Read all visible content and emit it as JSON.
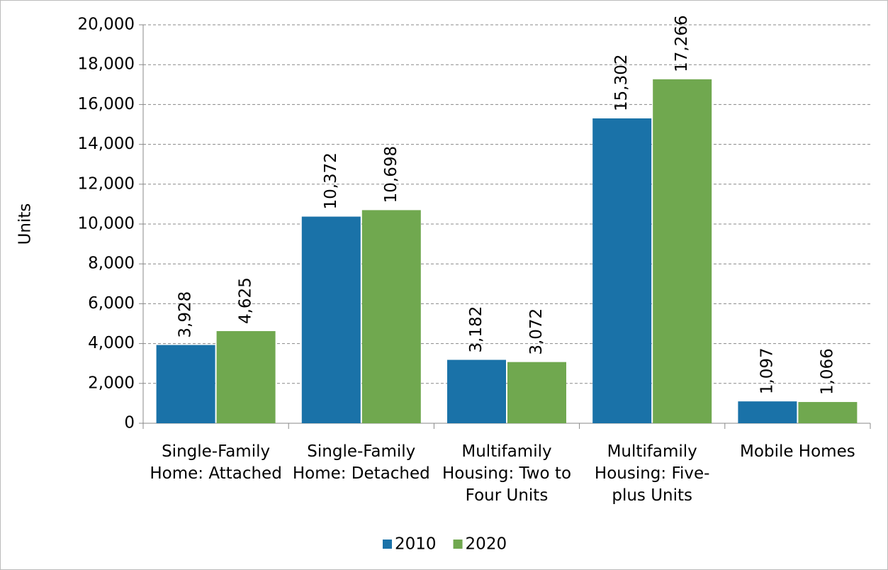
{
  "chart_data": {
    "type": "bar",
    "y_label": "Units",
    "categories": [
      "Single-Family Home: Attached",
      "Single-Family Home: Detached",
      "Multifamily Housing: Two to Four Units",
      "Multifamily Housing: Five-plus Units",
      "Mobile Homes"
    ],
    "series": [
      {
        "name": "2010",
        "color": "#1a72a8",
        "values": [
          3928,
          10372,
          3182,
          15302,
          1097
        ],
        "value_labels": [
          "3,928",
          "10,372",
          "3,182",
          "15,302",
          "1,097"
        ]
      },
      {
        "name": "2020",
        "color": "#70a84f",
        "values": [
          4625,
          10698,
          3072,
          17266,
          1066
        ],
        "value_labels": [
          "4,625",
          "10,698",
          "3,072",
          "17,266",
          "1,066"
        ]
      }
    ],
    "ylim": [
      0,
      20000
    ],
    "yticks": [
      0,
      {
        "value": 2000,
        "label": "2,000"
      },
      {
        "value": 4000,
        "label": "4,000"
      },
      {
        "value": 6000,
        "label": "6,000"
      },
      {
        "value": 8000,
        "label": "8,000"
      },
      {
        "value": 10000,
        "label": "10,000"
      },
      {
        "value": 12000,
        "label": "12,000"
      },
      {
        "value": 14000,
        "label": "14,000"
      },
      {
        "value": 16000,
        "label": "16,000"
      },
      {
        "value": 18000,
        "label": "18,000"
      },
      {
        "value": 20000,
        "label": "20,000"
      }
    ],
    "grid": true,
    "legend": "bottom"
  }
}
